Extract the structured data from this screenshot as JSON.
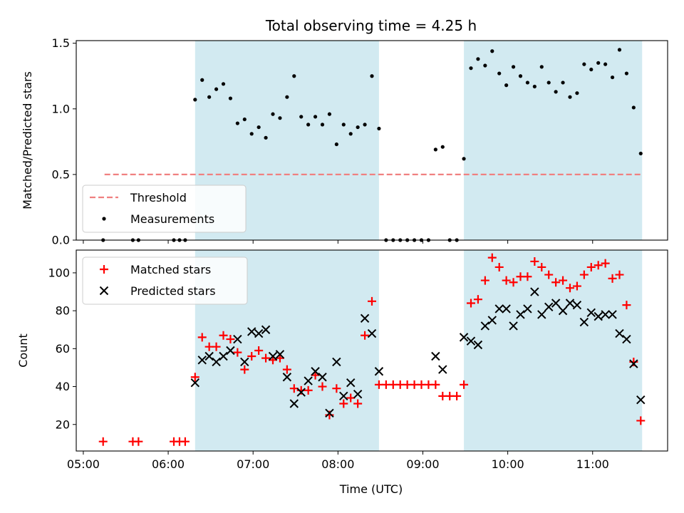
{
  "chart_data": [
    {
      "type": "scatter",
      "title": "Total observing time = 4.25 h",
      "xlabel": "",
      "ylabel": "Matched/Predicted stars",
      "xlim": [
        "04:55",
        "11:53"
      ],
      "ylim": [
        0,
        1.52
      ],
      "yticks": [
        "0.0",
        "0.5",
        "1.0",
        "1.5"
      ],
      "shaded_intervals": [
        [
          "06:19",
          "08:29"
        ],
        [
          "09:29",
          "11:35"
        ]
      ],
      "shade_color": "#add8e6",
      "threshold": {
        "name": "Threshold",
        "value": 0.5,
        "x_range": [
          "05:15",
          "11:35"
        ],
        "color": "#f08080",
        "style": "dashed"
      },
      "legend": {
        "position": "lower-left",
        "entries": [
          "Threshold",
          "Measurements"
        ]
      },
      "series": [
        {
          "name": "Measurements",
          "marker": "dot",
          "color": "#000000",
          "points": [
            [
              "05:14",
              0.0
            ],
            [
              "05:35",
              0.0
            ],
            [
              "05:39",
              0.0
            ],
            [
              "06:04",
              0.0
            ],
            [
              "06:08",
              0.0
            ],
            [
              "06:12",
              0.0
            ],
            [
              "06:19",
              1.07
            ],
            [
              "06:24",
              1.22
            ],
            [
              "06:29",
              1.09
            ],
            [
              "06:34",
              1.15
            ],
            [
              "06:39",
              1.19
            ],
            [
              "06:44",
              1.08
            ],
            [
              "06:49",
              0.89
            ],
            [
              "06:54",
              0.92
            ],
            [
              "06:59",
              0.81
            ],
            [
              "07:04",
              0.86
            ],
            [
              "07:09",
              0.78
            ],
            [
              "07:14",
              0.96
            ],
            [
              "07:19",
              0.93
            ],
            [
              "07:24",
              1.09
            ],
            [
              "07:29",
              1.25
            ],
            [
              "07:34",
              0.94
            ],
            [
              "07:39",
              0.88
            ],
            [
              "07:44",
              0.94
            ],
            [
              "07:49",
              0.88
            ],
            [
              "07:54",
              0.96
            ],
            [
              "07:59",
              0.73
            ],
            [
              "08:04",
              0.88
            ],
            [
              "08:09",
              0.81
            ],
            [
              "08:14",
              0.86
            ],
            [
              "08:19",
              0.88
            ],
            [
              "08:24",
              1.25
            ],
            [
              "08:29",
              0.85
            ],
            [
              "08:34",
              0.0
            ],
            [
              "08:39",
              0.0
            ],
            [
              "08:44",
              0.0
            ],
            [
              "08:49",
              0.0
            ],
            [
              "08:54",
              0.0
            ],
            [
              "08:59",
              0.0
            ],
            [
              "09:04",
              0.0
            ],
            [
              "09:09",
              0.69
            ],
            [
              "09:14",
              0.71
            ],
            [
              "09:19",
              0.0
            ],
            [
              "09:24",
              0.0
            ],
            [
              "09:29",
              0.62
            ],
            [
              "09:34",
              1.31
            ],
            [
              "09:39",
              1.38
            ],
            [
              "09:44",
              1.33
            ],
            [
              "09:49",
              1.44
            ],
            [
              "09:54",
              1.27
            ],
            [
              "09:59",
              1.18
            ],
            [
              "10:04",
              1.32
            ],
            [
              "10:09",
              1.25
            ],
            [
              "10:14",
              1.2
            ],
            [
              "10:19",
              1.17
            ],
            [
              "10:24",
              1.32
            ],
            [
              "10:29",
              1.2
            ],
            [
              "10:34",
              1.13
            ],
            [
              "10:39",
              1.2
            ],
            [
              "10:44",
              1.09
            ],
            [
              "10:49",
              1.12
            ],
            [
              "10:54",
              1.34
            ],
            [
              "10:59",
              1.3
            ],
            [
              "11:04",
              1.35
            ],
            [
              "11:09",
              1.34
            ],
            [
              "11:14",
              1.24
            ],
            [
              "11:19",
              1.45
            ],
            [
              "11:24",
              1.27
            ],
            [
              "11:29",
              1.01
            ],
            [
              "11:34",
              0.66
            ]
          ]
        }
      ]
    },
    {
      "type": "scatter",
      "title": "",
      "xlabel": "Time (UTC)",
      "ylabel": "Count",
      "xlim": [
        "04:55",
        "11:53"
      ],
      "xticks": [
        "05:00",
        "06:00",
        "07:00",
        "08:00",
        "09:00",
        "10:00",
        "11:00"
      ],
      "ylim": [
        6,
        112
      ],
      "yticks": [
        "20",
        "40",
        "60",
        "80",
        "100"
      ],
      "shaded_intervals": [
        [
          "06:19",
          "08:29"
        ],
        [
          "09:29",
          "11:35"
        ]
      ],
      "shade_color": "#add8e6",
      "legend": {
        "position": "upper-left",
        "entries": [
          "Matched stars",
          "Predicted stars"
        ]
      },
      "series": [
        {
          "name": "Matched stars",
          "marker": "plus",
          "color": "#ff0000",
          "points": [
            [
              "05:14",
              11
            ],
            [
              "05:35",
              11
            ],
            [
              "05:39",
              11
            ],
            [
              "06:04",
              11
            ],
            [
              "06:08",
              11
            ],
            [
              "06:12",
              11
            ],
            [
              "06:19",
              45
            ],
            [
              "06:24",
              66
            ],
            [
              "06:29",
              61
            ],
            [
              "06:34",
              61
            ],
            [
              "06:39",
              67
            ],
            [
              "06:44",
              65
            ],
            [
              "06:49",
              58
            ],
            [
              "06:54",
              49
            ],
            [
              "06:59",
              56
            ],
            [
              "07:04",
              59
            ],
            [
              "07:09",
              55
            ],
            [
              "07:14",
              54
            ],
            [
              "07:19",
              55
            ],
            [
              "07:24",
              49
            ],
            [
              "07:29",
              39
            ],
            [
              "07:34",
              38
            ],
            [
              "07:39",
              38
            ],
            [
              "07:44",
              46
            ],
            [
              "07:49",
              40
            ],
            [
              "07:54",
              25
            ],
            [
              "07:59",
              39
            ],
            [
              "08:04",
              31
            ],
            [
              "08:09",
              34
            ],
            [
              "08:14",
              31
            ],
            [
              "08:19",
              67
            ],
            [
              "08:24",
              85
            ],
            [
              "08:29",
              41
            ],
            [
              "08:34",
              41
            ],
            [
              "08:39",
              41
            ],
            [
              "08:44",
              41
            ],
            [
              "08:49",
              41
            ],
            [
              "08:54",
              41
            ],
            [
              "08:59",
              41
            ],
            [
              "09:04",
              41
            ],
            [
              "09:09",
              41
            ],
            [
              "09:14",
              35
            ],
            [
              "09:19",
              35
            ],
            [
              "09:24",
              35
            ],
            [
              "09:29",
              41
            ],
            [
              "09:34",
              84
            ],
            [
              "09:39",
              86
            ],
            [
              "09:44",
              96
            ],
            [
              "09:49",
              108
            ],
            [
              "09:54",
              103
            ],
            [
              "09:59",
              96
            ],
            [
              "10:04",
              95
            ],
            [
              "10:09",
              98
            ],
            [
              "10:14",
              98
            ],
            [
              "10:19",
              106
            ],
            [
              "10:24",
              103
            ],
            [
              "10:29",
              99
            ],
            [
              "10:34",
              95
            ],
            [
              "10:39",
              96
            ],
            [
              "10:44",
              92
            ],
            [
              "10:49",
              93
            ],
            [
              "10:54",
              99
            ],
            [
              "10:59",
              103
            ],
            [
              "11:04",
              104
            ],
            [
              "11:09",
              105
            ],
            [
              "11:14",
              97
            ],
            [
              "11:19",
              99
            ],
            [
              "11:24",
              83
            ],
            [
              "11:29",
              53
            ],
            [
              "11:34",
              22
            ]
          ]
        },
        {
          "name": "Predicted stars",
          "marker": "x",
          "color": "#000000",
          "points": [
            [
              "06:19",
              42
            ],
            [
              "06:24",
              54
            ],
            [
              "06:29",
              56
            ],
            [
              "06:34",
              53
            ],
            [
              "06:39",
              56
            ],
            [
              "06:44",
              59
            ],
            [
              "06:49",
              65
            ],
            [
              "06:54",
              53
            ],
            [
              "06:59",
              69
            ],
            [
              "07:04",
              68
            ],
            [
              "07:09",
              70
            ],
            [
              "07:14",
              56
            ],
            [
              "07:19",
              57
            ],
            [
              "07:24",
              45
            ],
            [
              "07:29",
              31
            ],
            [
              "07:34",
              37
            ],
            [
              "07:39",
              43
            ],
            [
              "07:44",
              48
            ],
            [
              "07:49",
              45
            ],
            [
              "07:54",
              26
            ],
            [
              "07:59",
              53
            ],
            [
              "08:04",
              35
            ],
            [
              "08:09",
              42
            ],
            [
              "08:14",
              36
            ],
            [
              "08:19",
              76
            ],
            [
              "08:24",
              68
            ],
            [
              "08:29",
              48
            ],
            [
              "09:09",
              56
            ],
            [
              "09:14",
              49
            ],
            [
              "09:29",
              66
            ],
            [
              "09:34",
              64
            ],
            [
              "09:39",
              62
            ],
            [
              "09:44",
              72
            ],
            [
              "09:49",
              75
            ],
            [
              "09:54",
              81
            ],
            [
              "09:59",
              81
            ],
            [
              "10:04",
              72
            ],
            [
              "10:09",
              78
            ],
            [
              "10:14",
              81
            ],
            [
              "10:19",
              90
            ],
            [
              "10:24",
              78
            ],
            [
              "10:29",
              82
            ],
            [
              "10:34",
              84
            ],
            [
              "10:39",
              80
            ],
            [
              "10:44",
              84
            ],
            [
              "10:49",
              83
            ],
            [
              "10:54",
              74
            ],
            [
              "10:59",
              79
            ],
            [
              "11:04",
              77
            ],
            [
              "11:09",
              78
            ],
            [
              "11:14",
              78
            ],
            [
              "11:19",
              68
            ],
            [
              "11:24",
              65
            ],
            [
              "11:29",
              52
            ],
            [
              "11:34",
              33
            ]
          ]
        }
      ]
    }
  ]
}
